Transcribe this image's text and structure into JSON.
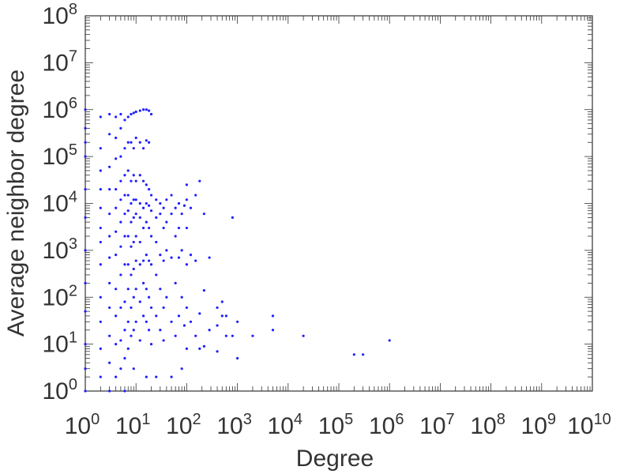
{
  "chart_data": {
    "type": "scatter",
    "title": "",
    "xlabel": "Degree",
    "ylabel": "Average neighbor degree",
    "x_scale": "log",
    "y_scale": "log",
    "xlim": [
      1,
      10000000000
    ],
    "ylim": [
      1,
      100000000
    ],
    "grid": false,
    "legend": "none",
    "marker_color": "#1f1fff",
    "axis_color": "#333333",
    "x_ticks": [
      {
        "base": "10",
        "exp": "0"
      },
      {
        "base": "10",
        "exp": "1"
      },
      {
        "base": "10",
        "exp": "2"
      },
      {
        "base": "10",
        "exp": "3"
      },
      {
        "base": "10",
        "exp": "4"
      },
      {
        "base": "10",
        "exp": "5"
      },
      {
        "base": "10",
        "exp": "6"
      },
      {
        "base": "10",
        "exp": "7"
      },
      {
        "base": "10",
        "exp": "8"
      },
      {
        "base": "10",
        "exp": "9"
      },
      {
        "base": "10",
        "exp": "10"
      }
    ],
    "y_ticks": [
      {
        "base": "10",
        "exp": "0"
      },
      {
        "base": "10",
        "exp": "1"
      },
      {
        "base": "10",
        "exp": "2"
      },
      {
        "base": "10",
        "exp": "3"
      },
      {
        "base": "10",
        "exp": "4"
      },
      {
        "base": "10",
        "exp": "5"
      },
      {
        "base": "10",
        "exp": "6"
      },
      {
        "base": "10",
        "exp": "7"
      },
      {
        "base": "10",
        "exp": "8"
      }
    ],
    "series": [
      {
        "points": [
          [
            1,
            1000000
          ],
          [
            1,
            400000
          ],
          [
            1,
            200000
          ],
          [
            1,
            100000
          ],
          [
            1,
            20000
          ],
          [
            1,
            5000
          ],
          [
            1,
            1000
          ],
          [
            1,
            200
          ],
          [
            1,
            50
          ],
          [
            1,
            10
          ],
          [
            1,
            3
          ],
          [
            1,
            1
          ],
          [
            2,
            700000
          ],
          [
            2,
            150000
          ],
          [
            2,
            50000
          ],
          [
            2,
            20000
          ],
          [
            2,
            8000
          ],
          [
            2,
            3000
          ],
          [
            2,
            1500
          ],
          [
            2,
            500
          ],
          [
            2,
            100
          ],
          [
            2,
            30
          ],
          [
            2,
            8
          ],
          [
            2,
            2
          ],
          [
            3,
            800000
          ],
          [
            3,
            300000
          ],
          [
            3,
            60000
          ],
          [
            3,
            20000
          ],
          [
            3,
            6000
          ],
          [
            3,
            2000
          ],
          [
            3,
            700
          ],
          [
            3,
            200
          ],
          [
            3,
            60
          ],
          [
            3,
            15
          ],
          [
            3,
            4
          ],
          [
            3,
            1
          ],
          [
            4,
            700000
          ],
          [
            4,
            250000
          ],
          [
            4,
            90000
          ],
          [
            4,
            20000
          ],
          [
            4,
            8000
          ],
          [
            4,
            2500
          ],
          [
            4,
            800
          ],
          [
            4,
            150
          ],
          [
            4,
            40
          ],
          [
            4,
            10
          ],
          [
            4,
            2
          ],
          [
            5,
            800000
          ],
          [
            5,
            400000
          ],
          [
            5,
            100000
          ],
          [
            5,
            30000
          ],
          [
            5,
            12000
          ],
          [
            5,
            4000
          ],
          [
            5,
            1200
          ],
          [
            5,
            300
          ],
          [
            5,
            60
          ],
          [
            5,
            12
          ],
          [
            5,
            3
          ],
          [
            6,
            600000
          ],
          [
            6,
            150000
          ],
          [
            6,
            40000
          ],
          [
            6,
            15000
          ],
          [
            6,
            6000
          ],
          [
            6,
            2000
          ],
          [
            6,
            500
          ],
          [
            6,
            80
          ],
          [
            6,
            20
          ],
          [
            6,
            5
          ],
          [
            6,
            1
          ],
          [
            7,
            700000
          ],
          [
            7,
            200000
          ],
          [
            7,
            50000
          ],
          [
            7,
            15000
          ],
          [
            7,
            7000
          ],
          [
            7,
            2000
          ],
          [
            7,
            500
          ],
          [
            7,
            150
          ],
          [
            7,
            30
          ],
          [
            7,
            8
          ],
          [
            8,
            800000
          ],
          [
            8,
            200000
          ],
          [
            8,
            30000
          ],
          [
            8,
            10000
          ],
          [
            8,
            4000
          ],
          [
            8,
            1200
          ],
          [
            8,
            300
          ],
          [
            8,
            60
          ],
          [
            8,
            15
          ],
          [
            9,
            850000
          ],
          [
            9,
            150000
          ],
          [
            9,
            40000
          ],
          [
            9,
            12000
          ],
          [
            9,
            5000
          ],
          [
            9,
            1500
          ],
          [
            9,
            400
          ],
          [
            9,
            100
          ],
          [
            9,
            20
          ],
          [
            9,
            3
          ],
          [
            10,
            900000
          ],
          [
            10,
            250000
          ],
          [
            10,
            30000
          ],
          [
            10,
            12000
          ],
          [
            10,
            6000
          ],
          [
            10,
            2000
          ],
          [
            10,
            600
          ],
          [
            10,
            150
          ],
          [
            10,
            30
          ],
          [
            12,
            950000
          ],
          [
            12,
            200000
          ],
          [
            12,
            40000
          ],
          [
            12,
            10000
          ],
          [
            12,
            5000
          ],
          [
            12,
            1500
          ],
          [
            12,
            500
          ],
          [
            12,
            80
          ],
          [
            12,
            12
          ],
          [
            14,
            1000000
          ],
          [
            14,
            150000
          ],
          [
            14,
            30000
          ],
          [
            14,
            8000
          ],
          [
            14,
            3000
          ],
          [
            14,
            600
          ],
          [
            14,
            200
          ],
          [
            14,
            40
          ],
          [
            16,
            1000000
          ],
          [
            16,
            220000
          ],
          [
            16,
            25000
          ],
          [
            16,
            10000
          ],
          [
            16,
            4000
          ],
          [
            16,
            800
          ],
          [
            16,
            150
          ],
          [
            16,
            30
          ],
          [
            16,
            2
          ],
          [
            18,
            950000
          ],
          [
            18,
            200000
          ],
          [
            18,
            20000
          ],
          [
            18,
            9000
          ],
          [
            18,
            3000
          ],
          [
            18,
            600
          ],
          [
            18,
            100
          ],
          [
            18,
            20
          ],
          [
            20,
            800000
          ],
          [
            20,
            15000
          ],
          [
            20,
            7000
          ],
          [
            20,
            2000
          ],
          [
            20,
            500
          ],
          [
            20,
            60
          ],
          [
            20,
            10
          ],
          [
            25,
            12000
          ],
          [
            25,
            5000
          ],
          [
            25,
            1500
          ],
          [
            25,
            300
          ],
          [
            25,
            40
          ],
          [
            25,
            2
          ],
          [
            30,
            10000
          ],
          [
            30,
            6000
          ],
          [
            30,
            800
          ],
          [
            30,
            150
          ],
          [
            30,
            20
          ],
          [
            35,
            8000
          ],
          [
            35,
            3000
          ],
          [
            35,
            600
          ],
          [
            35,
            60
          ],
          [
            35,
            12
          ],
          [
            40,
            12000
          ],
          [
            40,
            4000
          ],
          [
            40,
            1000
          ],
          [
            40,
            100
          ],
          [
            50,
            15000
          ],
          [
            50,
            6000
          ],
          [
            50,
            700
          ],
          [
            50,
            30
          ],
          [
            50,
            2
          ],
          [
            60,
            8000
          ],
          [
            60,
            2000
          ],
          [
            60,
            200
          ],
          [
            60,
            15
          ],
          [
            70,
            10000
          ],
          [
            70,
            3000
          ],
          [
            70,
            700
          ],
          [
            70,
            40
          ],
          [
            80,
            6000
          ],
          [
            80,
            1000
          ],
          [
            80,
            100
          ],
          [
            80,
            3
          ],
          [
            90,
            9000
          ],
          [
            90,
            25
          ],
          [
            100,
            25000
          ],
          [
            100,
            12000
          ],
          [
            100,
            3000
          ],
          [
            100,
            500
          ],
          [
            100,
            60
          ],
          [
            100,
            8
          ],
          [
            120,
            8000
          ],
          [
            120,
            800
          ],
          [
            120,
            30
          ],
          [
            150,
            15000
          ],
          [
            150,
            600
          ],
          [
            150,
            15
          ],
          [
            180,
            30000
          ],
          [
            180,
            45
          ],
          [
            180,
            8
          ],
          [
            220,
            6000
          ],
          [
            220,
            140
          ],
          [
            220,
            9
          ],
          [
            280,
            700
          ],
          [
            280,
            20
          ],
          [
            400,
            60
          ],
          [
            400,
            25
          ],
          [
            400,
            7
          ],
          [
            500,
            80
          ],
          [
            500,
            40
          ],
          [
            600,
            40
          ],
          [
            600,
            15
          ],
          [
            800,
            5000
          ],
          [
            800,
            15
          ],
          [
            1000,
            30
          ],
          [
            1000,
            5
          ],
          [
            2000,
            15
          ],
          [
            5000,
            40
          ],
          [
            5000,
            20
          ],
          [
            20000,
            15
          ],
          [
            200000,
            6
          ],
          [
            300000,
            6
          ],
          [
            1000000,
            12
          ]
        ]
      }
    ]
  }
}
